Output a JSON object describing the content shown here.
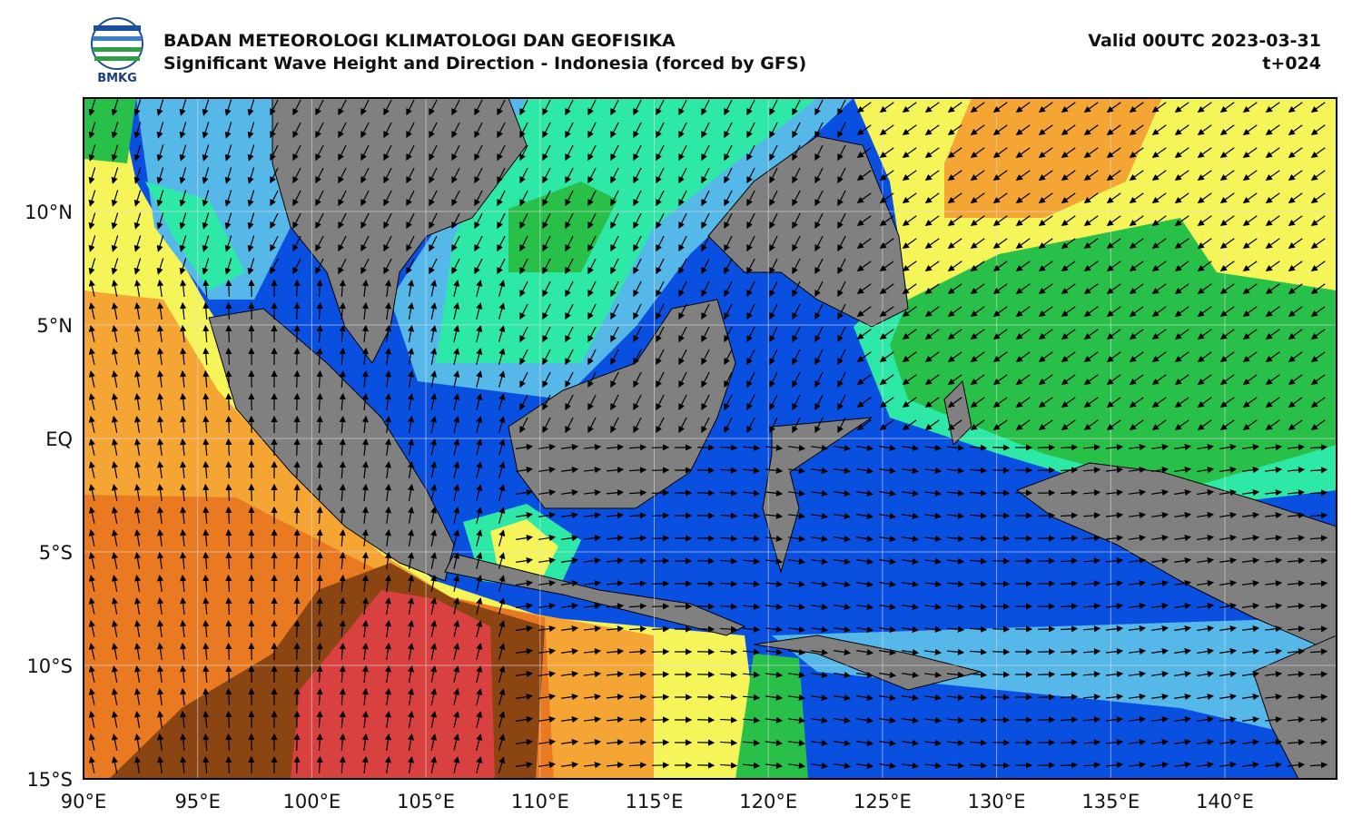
{
  "header": {
    "logo_text": "BMKG",
    "title": "BADAN METEOROLOGI KLIMATOLOGI DAN GEOFISIKA",
    "subtitle": "Significant Wave Height and Direction - Indonesia (forced by GFS)",
    "valid": "Valid 00UTC 2023-03-31",
    "lead_time": "t+024"
  },
  "map": {
    "lat_labels": [
      "10°N",
      "5°N",
      "EQ",
      "5°S",
      "10°S",
      "15°S"
    ],
    "lon_labels": [
      "90°E",
      "95°E",
      "100°E",
      "105°E",
      "110°E",
      "115°E",
      "120°E",
      "125°E",
      "130°E",
      "135°E",
      "140°E"
    ]
  }
}
